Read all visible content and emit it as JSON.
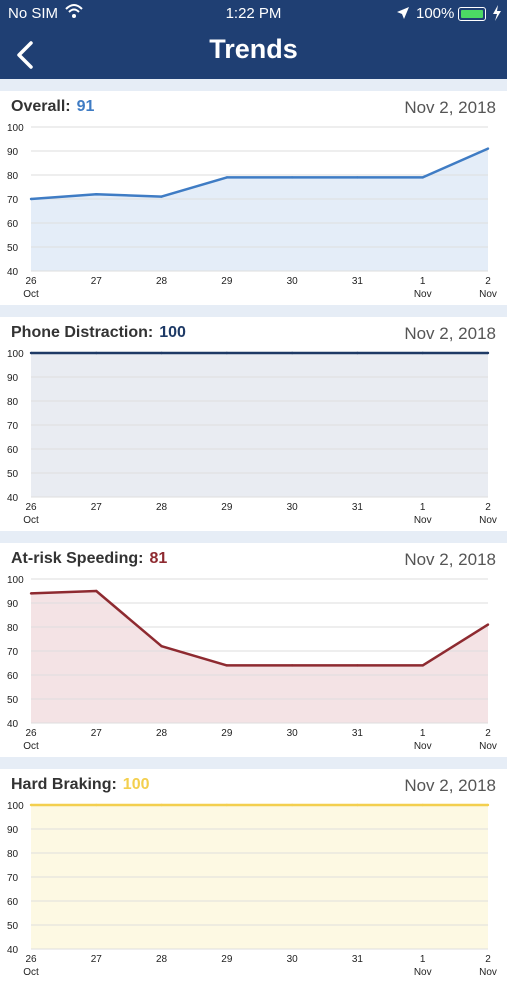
{
  "status_bar": {
    "carrier": "No SIM",
    "time": "1:22 PM",
    "battery": "100%"
  },
  "header": {
    "title": "Trends"
  },
  "cards": [
    {
      "label": "Overall:",
      "score": "91",
      "date": "Nov 2, 2018",
      "color": "#3f7cc4",
      "fill": "#e4edf8"
    },
    {
      "label": "Phone Distraction:",
      "score": "100",
      "date": "Nov 2, 2018",
      "color": "#1e3a66",
      "fill": "#e9ecf2"
    },
    {
      "label": "At-risk Speeding:",
      "score": "81",
      "date": "Nov 2, 2018",
      "color": "#8e2a30",
      "fill": "#f4e3e5"
    },
    {
      "label": "Hard Braking:",
      "score": "100",
      "date": "Nov 2, 2018",
      "color": "#f3cf4e",
      "fill": "#fdf9e3"
    }
  ],
  "chart_data": [
    {
      "type": "area",
      "x": [
        "26 Oct",
        "27",
        "28",
        "29",
        "30",
        "31",
        "1 Nov",
        "2 Nov"
      ],
      "values": [
        70,
        72,
        71,
        79,
        79,
        79,
        79,
        91
      ],
      "ylim": [
        40,
        100
      ],
      "yticks": [
        100,
        90,
        80,
        70,
        60,
        50,
        40
      ],
      "grid": true
    },
    {
      "type": "area",
      "x": [
        "26 Oct",
        "27",
        "28",
        "29",
        "30",
        "31",
        "1 Nov",
        "2 Nov"
      ],
      "values": [
        100,
        100,
        100,
        100,
        100,
        100,
        100,
        100
      ],
      "ylim": [
        40,
        100
      ],
      "yticks": [
        100,
        90,
        80,
        70,
        60,
        50,
        40
      ],
      "grid": true
    },
    {
      "type": "area",
      "x": [
        "26 Oct",
        "27",
        "28",
        "29",
        "30",
        "31",
        "1 Nov",
        "2 Nov"
      ],
      "values": [
        94,
        95,
        72,
        64,
        64,
        64,
        64,
        81
      ],
      "ylim": [
        40,
        100
      ],
      "yticks": [
        100,
        90,
        80,
        70,
        60,
        50,
        40
      ],
      "grid": true
    },
    {
      "type": "area",
      "x": [
        "26 Oct",
        "27",
        "28",
        "29",
        "30",
        "31",
        "1 Nov",
        "2 Nov"
      ],
      "values": [
        100,
        100,
        100,
        100,
        100,
        100,
        100,
        100
      ],
      "ylim": [
        40,
        100
      ],
      "yticks": [
        100,
        90,
        80,
        70,
        60,
        50,
        40
      ],
      "grid": true
    }
  ]
}
